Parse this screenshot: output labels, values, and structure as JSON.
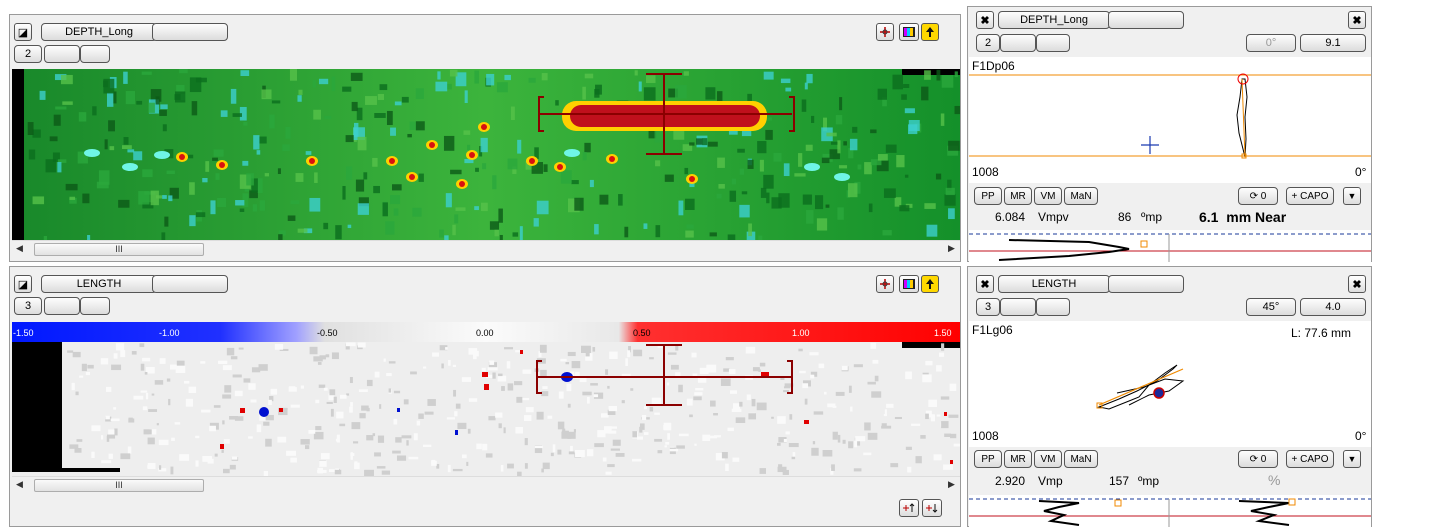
{
  "left_top": {
    "title": "DEPTH_Long",
    "number": "2",
    "scroll_grip": "III"
  },
  "left_bottom": {
    "title": "LENGTH",
    "number": "3",
    "scroll_grip": "III",
    "scale_ticks": [
      "-1.50",
      "-1.00",
      "-0.50",
      "0.00",
      "0.50",
      "1.00",
      "1.50"
    ]
  },
  "right_top": {
    "title": "DEPTH_Long",
    "number": "2",
    "angle": "0°",
    "value": "9.1",
    "probe": "F1Dp06",
    "left_num": "1008",
    "right_angle": "0°",
    "btns": [
      "PP",
      "MR",
      "VM",
      "MaN"
    ],
    "rot": "⟳ 0",
    "capo": "+ CAPO",
    "reading1": "6.084",
    "unit1": "Vmpv",
    "reading2": "86",
    "unit2": "ºmp",
    "big": "6.1  mm Near"
  },
  "right_bottom": {
    "title": "LENGTH",
    "number": "3",
    "angle": "45°",
    "value": "4.0",
    "probe": "F1Lg06",
    "length": "L: 77.6 mm",
    "left_num": "1008",
    "right_angle": "0°",
    "btns": [
      "PP",
      "MR",
      "VM",
      "MaN"
    ],
    "rot": "⟳ 0",
    "capo": "+ CAPO",
    "reading1": "2.920",
    "unit1": "Vmp",
    "reading2": "157",
    "unit2": "ºmp",
    "pct": "%"
  },
  "colors": {
    "green": "#1f9a2f",
    "red": "#c0101c",
    "blue": "#1030ff",
    "orange": "#f08a00",
    "navy": "#1a3a9a"
  }
}
